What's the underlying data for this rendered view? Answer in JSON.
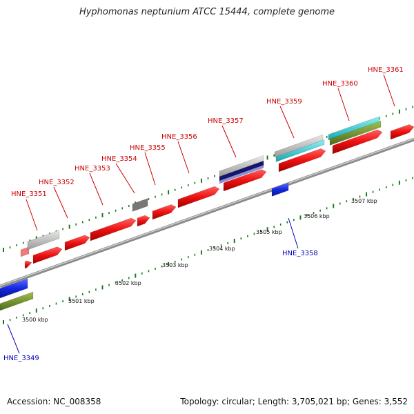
{
  "title": "Hyphomonas neptunium ATCC 15444, complete genome",
  "footer": {
    "accession": "Accession: NC_008358",
    "topology": "Topology: circular; Length: 3,705,021 bp; Genes: 3,552"
  },
  "colors": {
    "forward_gene": "#e8141a",
    "reverse_gene": "#1428e0",
    "axis": "#888888",
    "ticks": "#1a7a1a",
    "cyan": "#22c8d0",
    "olive": "#6e8c2a",
    "navy": "#15156e",
    "lavender": "#8f8fd8",
    "gray": "#b8b8b8",
    "darkgray": "#666666"
  },
  "scale_labels": [
    "3500 kbp",
    "3501 kbp",
    "3502 kbp",
    "3503 kbp",
    "3504 kbp",
    "3505 kbp",
    "3506 kbp",
    "3507 kbp"
  ],
  "gene_labels": [
    {
      "id": "HNE_3349",
      "strand": "reverse"
    },
    {
      "id": "HNE_3351",
      "strand": "forward"
    },
    {
      "id": "HNE_3352",
      "strand": "forward"
    },
    {
      "id": "HNE_3353",
      "strand": "forward"
    },
    {
      "id": "HNE_3354",
      "strand": "forward"
    },
    {
      "id": "HNE_3355",
      "strand": "forward"
    },
    {
      "id": "HNE_3356",
      "strand": "forward"
    },
    {
      "id": "HNE_3357",
      "strand": "forward"
    },
    {
      "id": "HNE_3358",
      "strand": "reverse"
    },
    {
      "id": "HNE_3359",
      "strand": "forward"
    },
    {
      "id": "HNE_3360",
      "strand": "forward"
    },
    {
      "id": "HNE_3361",
      "strand": "forward"
    }
  ]
}
